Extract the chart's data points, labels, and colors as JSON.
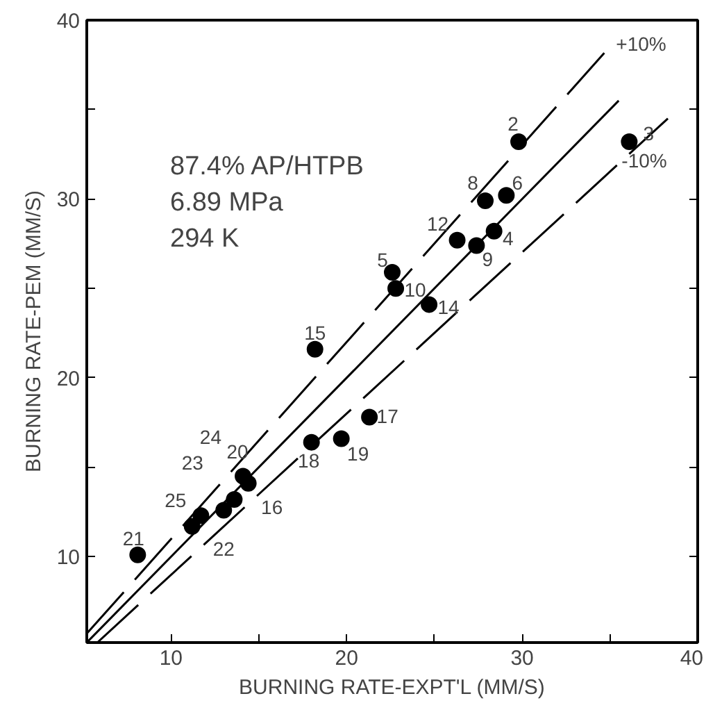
{
  "chart_data": {
    "type": "scatter",
    "xlabel": "BURNING RATE-EXPT'L (MM/S)",
    "ylabel": "BURNING RATE-PEM (MM/S)",
    "xlim": [
      5.2,
      40
    ],
    "ylim": [
      5.2,
      40
    ],
    "xticks": [
      10,
      {
        "value": 15,
        "label": null
      },
      20,
      {
        "value": 25,
        "label": null
      },
      30,
      {
        "value": 35,
        "label": null
      },
      40
    ],
    "yticks": [
      10,
      {
        "value": 15,
        "label": null
      },
      20,
      {
        "value": 25,
        "label": null
      },
      30,
      {
        "value": 35,
        "label": null
      },
      40
    ],
    "marker": "circle",
    "series": [
      {
        "color": "#000000",
        "x": [
          29.8,
          36.1,
          27.9,
          29.1,
          26.3,
          27.4,
          28.4,
          22.6,
          22.8,
          24.7,
          18.2,
          21.3,
          18.0,
          19.7,
          14.1,
          14.4,
          13.6,
          13.0,
          11.7,
          11.2,
          8.1
        ],
        "values": [
          33.2,
          33.2,
          29.9,
          30.2,
          27.7,
          27.4,
          28.2,
          25.9,
          25.0,
          24.1,
          21.6,
          17.8,
          16.4,
          16.6,
          14.5,
          14.1,
          13.2,
          12.6,
          12.3,
          11.7,
          10.1
        ]
      },
      {
        "type": "line",
        "marker": "none",
        "color": "#000000",
        "line_style": "solid",
        "x": [
          5.2,
          35.5
        ],
        "values": [
          5.2,
          35.5
        ]
      },
      {
        "type": "line",
        "marker": "none",
        "color": "#000000",
        "line_style": "dashed",
        "x": [
          5.2,
          34.8
        ],
        "values": [
          5.7,
          38.3
        ]
      },
      {
        "type": "line",
        "marker": "none",
        "color": "#000000",
        "line_style": "dashed",
        "x": [
          5.8,
          38.3
        ],
        "values": [
          5.2,
          34.5
        ]
      }
    ],
    "annotations": [
      "87.4% AP/HTPB",
      "6.89 MPa",
      "294 K",
      {
        "text": "+10%",
        "x": 34.8,
        "y": 38.3
      },
      {
        "text": "-10%",
        "x": 38.3,
        "y": 34.5
      },
      {
        "text": "2",
        "x": 29.8,
        "y": 33.2
      },
      {
        "text": "3",
        "x": 36.1,
        "y": 33.2
      },
      {
        "text": "8",
        "x": 27.9,
        "y": 29.9
      },
      {
        "text": "6",
        "x": 29.1,
        "y": 30.2
      },
      {
        "text": "12",
        "x": 26.3,
        "y": 27.7
      },
      {
        "text": "9",
        "x": 27.4,
        "y": 27.4
      },
      {
        "text": "4",
        "x": 28.4,
        "y": 28.2
      },
      {
        "text": "5",
        "x": 22.6,
        "y": 25.9
      },
      {
        "text": "10",
        "x": 22.8,
        "y": 25.0
      },
      {
        "text": "14",
        "x": 24.7,
        "y": 24.1
      },
      {
        "text": "15",
        "x": 18.2,
        "y": 21.6
      },
      {
        "text": "17",
        "x": 21.3,
        "y": 17.8
      },
      {
        "text": "18",
        "x": 18.0,
        "y": 16.4
      },
      {
        "text": "19",
        "x": 19.7,
        "y": 16.6
      },
      {
        "text": "20",
        "x": 14.1,
        "y": 14.5
      },
      {
        "text": "16",
        "x": 14.4,
        "y": 14.1
      },
      {
        "text": "24",
        "x": 13.6,
        "y": 13.2
      },
      {
        "text": "22",
        "x": 13.0,
        "y": 12.6
      },
      {
        "text": "23",
        "x": 11.7,
        "y": 12.3
      },
      {
        "text": "25",
        "x": 11.2,
        "y": 11.7
      },
      {
        "text": "21",
        "x": 8.1,
        "y": 10.1
      }
    ]
  }
}
